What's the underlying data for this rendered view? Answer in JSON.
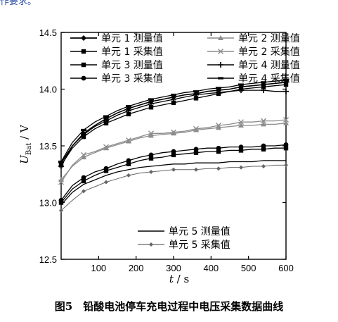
{
  "header_fragment": "作要求。",
  "caption": "图5　铅酸电池停车充电过程中电压采集数据曲线",
  "chart_data": {
    "type": "line",
    "title": "",
    "xlabel": "t / s",
    "ylabel": "U_Bat / V",
    "ylabel_main": "U",
    "ylabel_sub": "Bat",
    "ylabel_unit": " / V",
    "xlabel_main": "t",
    "xlabel_unit": " / s",
    "xlim": [
      0,
      600
    ],
    "ylim": [
      12.5,
      14.5
    ],
    "xticks": [
      100,
      200,
      300,
      400,
      500,
      600
    ],
    "yticks": [
      12.5,
      13.0,
      13.5,
      14.0,
      14.5
    ],
    "grid": false,
    "legend_placement": "top / bottom-center",
    "series": [
      {
        "name": "单元 1 测量值",
        "color": "#000000",
        "marker": "diamond",
        "linewidth": 1.6,
        "x": [
          0,
          30,
          60,
          90,
          120,
          150,
          180,
          210,
          240,
          270,
          300,
          330,
          360,
          390,
          420,
          450,
          480,
          510,
          540,
          570,
          600
        ],
        "y": [
          13.35,
          13.5,
          13.61,
          13.68,
          13.74,
          13.79,
          13.83,
          13.86,
          13.89,
          13.91,
          13.93,
          13.95,
          13.96,
          13.98,
          13.99,
          14.0,
          14.02,
          14.03,
          14.04,
          14.05,
          14.06
        ]
      },
      {
        "name": "单元 1 采集值",
        "color": "#000000",
        "marker": "square",
        "linewidth": 1.3,
        "x": [
          0,
          30,
          60,
          90,
          120,
          150,
          180,
          210,
          240,
          270,
          300,
          330,
          360,
          390,
          420,
          450,
          480,
          510,
          540,
          570,
          600
        ],
        "y": [
          13.33,
          13.48,
          13.58,
          13.65,
          13.7,
          13.74,
          13.78,
          13.81,
          13.84,
          13.86,
          13.88,
          13.9,
          13.92,
          13.94,
          13.96,
          13.98,
          14.0,
          14.01,
          14.02,
          14.03,
          14.04
        ]
      },
      {
        "name": "单元 3 测量值",
        "color": "#000000",
        "marker": "square",
        "linewidth": 1.3,
        "x": [
          0,
          30,
          60,
          90,
          120,
          150,
          180,
          210,
          240,
          270,
          300,
          330,
          360,
          390,
          420,
          450,
          480,
          510,
          540,
          570,
          600
        ],
        "y": [
          13.0,
          13.12,
          13.19,
          13.24,
          13.28,
          13.31,
          13.34,
          13.37,
          13.39,
          13.4,
          13.42,
          13.43,
          13.44,
          13.45,
          13.45,
          13.46,
          13.46,
          13.47,
          13.47,
          13.48,
          13.48
        ]
      },
      {
        "name": "单元 3 采集值",
        "color": "#000000",
        "marker": "circle",
        "linewidth": 1.3,
        "x": [
          0,
          30,
          60,
          90,
          120,
          150,
          180,
          210,
          240,
          270,
          300,
          330,
          360,
          390,
          420,
          450,
          480,
          510,
          540,
          570,
          600
        ],
        "y": [
          13.02,
          13.15,
          13.22,
          13.27,
          13.3,
          13.34,
          13.37,
          13.4,
          13.42,
          13.44,
          13.45,
          13.46,
          13.47,
          13.48,
          13.48,
          13.49,
          13.49,
          13.49,
          13.5,
          13.5,
          13.51
        ]
      },
      {
        "name": "单元 2 测量值",
        "color": "#8c8c8c",
        "marker": "triangle",
        "linewidth": 1.3,
        "x": [
          0,
          30,
          60,
          90,
          120,
          150,
          180,
          210,
          240,
          270,
          300,
          330,
          360,
          390,
          420,
          450,
          480,
          510,
          540,
          570,
          600
        ],
        "y": [
          13.2,
          13.32,
          13.4,
          13.44,
          13.48,
          13.51,
          13.54,
          13.57,
          13.59,
          13.6,
          13.61,
          13.62,
          13.64,
          13.65,
          13.66,
          13.67,
          13.68,
          13.68,
          13.69,
          13.69,
          13.7
        ]
      },
      {
        "name": "单元 2 采集值",
        "color": "#8c8c8c",
        "marker": "x",
        "linewidth": 1.3,
        "x": [
          0,
          30,
          60,
          90,
          120,
          150,
          180,
          210,
          240,
          270,
          300,
          330,
          360,
          390,
          420,
          450,
          480,
          510,
          540,
          570,
          600
        ],
        "y": [
          13.18,
          13.33,
          13.42,
          13.45,
          13.49,
          13.52,
          13.55,
          13.58,
          13.61,
          13.61,
          13.62,
          13.63,
          13.65,
          13.66,
          13.68,
          13.69,
          13.71,
          13.71,
          13.72,
          13.72,
          13.73
        ]
      },
      {
        "name": "单元 4 测量值",
        "color": "#000000",
        "marker": "plus",
        "linewidth": 1.3,
        "x": [
          0,
          30,
          60,
          90,
          120,
          150,
          180,
          210,
          240,
          270,
          300,
          330,
          360,
          390,
          420,
          450,
          480,
          510,
          540,
          570,
          600
        ],
        "y": [
          13.32,
          13.5,
          13.6,
          13.67,
          13.72,
          13.77,
          13.81,
          13.84,
          13.87,
          13.89,
          13.91,
          13.93,
          13.95,
          13.96,
          13.97,
          13.98,
          13.99,
          13.99,
          13.99,
          13.98,
          13.98
        ]
      },
      {
        "name": "单元 4 采集值",
        "color": "#000000",
        "marker": "dash",
        "linewidth": 1.3,
        "x": [
          0,
          30,
          60,
          90,
          120,
          150,
          180,
          210,
          240,
          270,
          300,
          330,
          360,
          390,
          420,
          450,
          480,
          510,
          540,
          570,
          600
        ],
        "y": [
          13.36,
          13.53,
          13.64,
          13.71,
          13.76,
          13.81,
          13.85,
          13.88,
          13.91,
          13.93,
          13.95,
          13.97,
          13.98,
          14.0,
          14.01,
          14.02,
          14.04,
          14.05,
          14.06,
          14.07,
          14.08
        ]
      },
      {
        "name": "单元 5 测量值",
        "color": "#000000",
        "marker": "none",
        "linewidth": 1.3,
        "x": [
          0,
          30,
          60,
          90,
          120,
          150,
          180,
          210,
          240,
          270,
          300,
          330,
          360,
          390,
          420,
          450,
          480,
          510,
          540,
          570,
          600
        ],
        "y": [
          12.98,
          13.09,
          13.16,
          13.2,
          13.24,
          13.27,
          13.29,
          13.31,
          13.32,
          13.33,
          13.34,
          13.34,
          13.35,
          13.35,
          13.35,
          13.36,
          13.36,
          13.36,
          13.37,
          13.37,
          13.37
        ]
      },
      {
        "name": "单元 5 采集值",
        "color": "#666666",
        "marker": "diamond-small",
        "linewidth": 1.0,
        "x": [
          0,
          30,
          60,
          90,
          120,
          150,
          180,
          210,
          240,
          270,
          300,
          330,
          360,
          390,
          420,
          450,
          480,
          510,
          540,
          570,
          600
        ],
        "y": [
          12.93,
          13.02,
          13.1,
          13.14,
          13.18,
          13.21,
          13.24,
          13.26,
          13.27,
          13.28,
          13.29,
          13.29,
          13.29,
          13.3,
          13.3,
          13.31,
          13.31,
          13.32,
          13.32,
          13.33,
          13.33
        ]
      }
    ],
    "legend": [
      {
        "label": "单元 1 测量值",
        "series": 0,
        "col": 0,
        "row": 0
      },
      {
        "label": "单元 1 采集值",
        "series": 1,
        "col": 0,
        "row": 1
      },
      {
        "label": "单元 3 测量值",
        "series": 2,
        "col": 0,
        "row": 2
      },
      {
        "label": "单元 3 采集值",
        "series": 3,
        "col": 0,
        "row": 3
      },
      {
        "label": "单元 2 测量值",
        "series": 4,
        "col": 1,
        "row": 0
      },
      {
        "label": "单元 2 采集值",
        "series": 5,
        "col": 1,
        "row": 1
      },
      {
        "label": "单元 4 测量值",
        "series": 6,
        "col": 1,
        "row": 2
      },
      {
        "label": "单元 4 采集值",
        "series": 7,
        "col": 1,
        "row": 3
      },
      {
        "label": "单元 5 测量值",
        "series": 8,
        "col": 2,
        "row": 0
      },
      {
        "label": "单元 5 采集值",
        "series": 9,
        "col": 2,
        "row": 1
      }
    ]
  }
}
